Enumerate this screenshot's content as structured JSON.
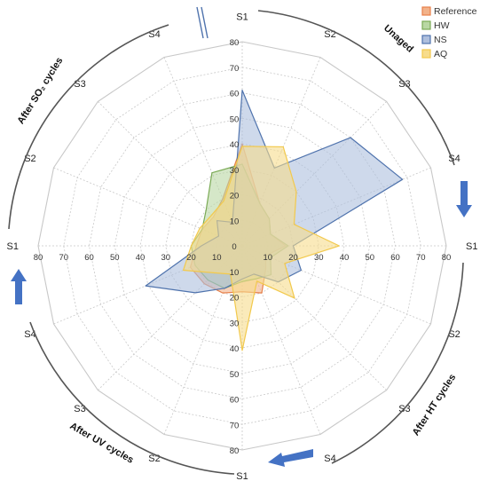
{
  "chart_data": {
    "type": "radar",
    "spokes": [
      "S1",
      "S2",
      "S3",
      "S4",
      "S1",
      "S2",
      "S3",
      "S4",
      "S1",
      "S2",
      "S3",
      "S4",
      "S1",
      "S2",
      "S3",
      "S4"
    ],
    "rlim": [
      0,
      80
    ],
    "ticks": [
      0,
      10,
      20,
      30,
      40,
      50,
      60,
      70,
      80
    ],
    "groups": [
      "Unaged",
      "After HT cycles",
      "After UV cycles",
      "After SO₂ cycles"
    ],
    "legend_position": "top-right",
    "series": [
      {
        "name": "Reference",
        "color": "#e8804a",
        "fill": "#f2b28a",
        "values": [
          40,
          18,
          15,
          12,
          17,
          10,
          13,
          20,
          18,
          20,
          21,
          22,
          18,
          17,
          16,
          20
        ]
      },
      {
        "name": "HW",
        "color": "#7aaa55",
        "fill": "#b9d7a3",
        "values": [
          32,
          18,
          15,
          12,
          18,
          12,
          16,
          14,
          14,
          18,
          19,
          20,
          20,
          17,
          20,
          31
        ]
      },
      {
        "name": "NS",
        "color": "#4f73ad",
        "fill": "#aebfdd",
        "values": [
          61,
          33,
          60,
          68,
          20,
          25,
          20,
          12,
          13,
          18,
          26,
          41,
          16,
          10,
          14,
          10
        ]
      },
      {
        "name": "AQ",
        "color": "#f2c94c",
        "fill": "#f7dc8c",
        "values": [
          39,
          42,
          30,
          22,
          38,
          18,
          29,
          15,
          41,
          12,
          15,
          25,
          20,
          18,
          17,
          19
        ]
      }
    ]
  }
}
